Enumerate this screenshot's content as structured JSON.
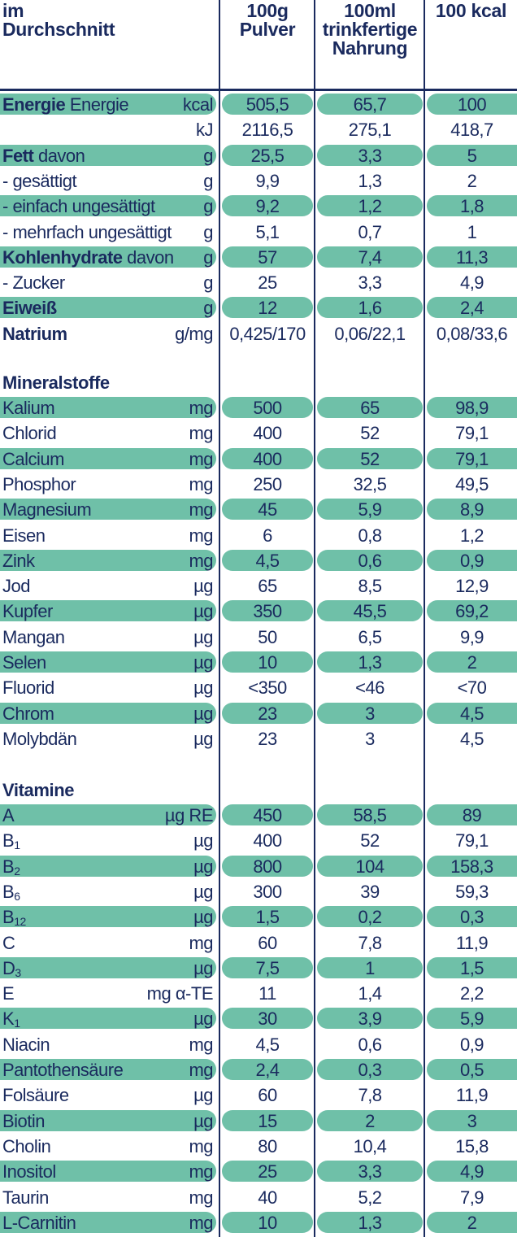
{
  "header": {
    "col0": [
      "im",
      "Durchschnitt"
    ],
    "col1": [
      "100g",
      "Pulver"
    ],
    "col2": [
      "100ml",
      "trinkfertige",
      "Nahrung"
    ],
    "col3": [
      "100 kcal"
    ]
  },
  "colors": {
    "band": "#6fc0a8",
    "text": "#1a2a5e",
    "rule": "#1a2a5e"
  },
  "sections": [
    {
      "title": "",
      "rows": [
        {
          "name": "Energie",
          "bold": "Energie",
          "unit": "kcal",
          "v": [
            "505,5",
            "65,7",
            "100"
          ],
          "shaded": true
        },
        {
          "name": "",
          "unit": "kJ",
          "v": [
            "2116,5",
            "275,1",
            "418,7"
          ],
          "shaded": false
        },
        {
          "name": "davon",
          "bold": "Fett",
          "unit": "g",
          "v": [
            "25,5",
            "3,3",
            "5"
          ],
          "shaded": true
        },
        {
          "name": "- gesättigt",
          "unit": "g",
          "v": [
            "9,9",
            "1,3",
            "2"
          ],
          "shaded": false
        },
        {
          "name": "- einfach ungesättigt",
          "unit": "g",
          "v": [
            "9,2",
            "1,2",
            "1,8"
          ],
          "shaded": true
        },
        {
          "name": "- mehrfach ungesättigt",
          "unit": "g",
          "v": [
            "5,1",
            "0,7",
            "1"
          ],
          "shaded": false
        },
        {
          "name": "davon",
          "bold": "Kohlenhydrate",
          "unit": "g",
          "v": [
            "57",
            "7,4",
            "11,3"
          ],
          "shaded": true
        },
        {
          "name": "- Zucker",
          "unit": "g",
          "v": [
            "25",
            "3,3",
            "4,9"
          ],
          "shaded": false
        },
        {
          "name": "",
          "bold": "Eiweiß",
          "unit": "g",
          "v": [
            "12",
            "1,6",
            "2,4"
          ],
          "shaded": true
        },
        {
          "name": "",
          "bold": "Natrium",
          "unit": "g/mg",
          "v": [
            "0,425/170",
            "0,06/22,1",
            "0,08/33,6"
          ],
          "shaded": false
        }
      ]
    },
    {
      "title": "Mineralstoffe",
      "rows": [
        {
          "name": "Kalium",
          "unit": "mg",
          "v": [
            "500",
            "65",
            "98,9"
          ],
          "shaded": true
        },
        {
          "name": "Chlorid",
          "unit": "mg",
          "v": [
            "400",
            "52",
            "79,1"
          ],
          "shaded": false
        },
        {
          "name": "Calcium",
          "unit": "mg",
          "v": [
            "400",
            "52",
            "79,1"
          ],
          "shaded": true
        },
        {
          "name": "Phosphor",
          "unit": "mg",
          "v": [
            "250",
            "32,5",
            "49,5"
          ],
          "shaded": false
        },
        {
          "name": "Magnesium",
          "unit": "mg",
          "v": [
            "45",
            "5,9",
            "8,9"
          ],
          "shaded": true
        },
        {
          "name": "Eisen",
          "unit": "mg",
          "v": [
            "6",
            "0,8",
            "1,2"
          ],
          "shaded": false
        },
        {
          "name": "Zink",
          "unit": "mg",
          "v": [
            "4,5",
            "0,6",
            "0,9"
          ],
          "shaded": true
        },
        {
          "name": "Jod",
          "unit": "µg",
          "v": [
            "65",
            "8,5",
            "12,9"
          ],
          "shaded": false
        },
        {
          "name": "Kupfer",
          "unit": "µg",
          "v": [
            "350",
            "45,5",
            "69,2"
          ],
          "shaded": true
        },
        {
          "name": "Mangan",
          "unit": "µg",
          "v": [
            "50",
            "6,5",
            "9,9"
          ],
          "shaded": false
        },
        {
          "name": "Selen",
          "unit": "µg",
          "v": [
            "10",
            "1,3",
            "2"
          ],
          "shaded": true
        },
        {
          "name": "Fluorid",
          "unit": "µg",
          "v": [
            "<350",
            "<46",
            "<70"
          ],
          "shaded": false
        },
        {
          "name": "Chrom",
          "unit": "µg",
          "v": [
            "23",
            "3",
            "4,5"
          ],
          "shaded": true
        },
        {
          "name": "Molybdän",
          "unit": "µg",
          "v": [
            "23",
            "3",
            "4,5"
          ],
          "shaded": false
        }
      ]
    },
    {
      "title": "Vitamine",
      "rows": [
        {
          "name": "A",
          "unit": "µg RE",
          "v": [
            "450",
            "58,5",
            "89"
          ],
          "shaded": true
        },
        {
          "name": "B",
          "sub": "1",
          "unit": "µg",
          "v": [
            "400",
            "52",
            "79,1"
          ],
          "shaded": false
        },
        {
          "name": "B",
          "sub": "2",
          "unit": "µg",
          "v": [
            "800",
            "104",
            "158,3"
          ],
          "shaded": true
        },
        {
          "name": "B",
          "sub": "6",
          "unit": "µg",
          "v": [
            "300",
            "39",
            "59,3"
          ],
          "shaded": false
        },
        {
          "name": "B",
          "sub": "12",
          "unit": "µg",
          "v": [
            "1,5",
            "0,2",
            "0,3"
          ],
          "shaded": true
        },
        {
          "name": "C",
          "unit": "mg",
          "v": [
            "60",
            "7,8",
            "11,9"
          ],
          "shaded": false
        },
        {
          "name": "D",
          "sub": "3",
          "unit": "µg",
          "v": [
            "7,5",
            "1",
            "1,5"
          ],
          "shaded": true
        },
        {
          "name": "E",
          "unit": "mg α-TE",
          "v": [
            "11",
            "1,4",
            "2,2"
          ],
          "shaded": false
        },
        {
          "name": "K",
          "sub": "1",
          "unit": "µg",
          "v": [
            "30",
            "3,9",
            "5,9"
          ],
          "shaded": true
        },
        {
          "name": "Niacin",
          "unit": "mg",
          "v": [
            "4,5",
            "0,6",
            "0,9"
          ],
          "shaded": false
        },
        {
          "name": "Pantothensäure",
          "unit": "mg",
          "v": [
            "2,4",
            "0,3",
            "0,5"
          ],
          "shaded": true
        },
        {
          "name": "Folsäure",
          "unit": "µg",
          "v": [
            "60",
            "7,8",
            "11,9"
          ],
          "shaded": false
        },
        {
          "name": "Biotin",
          "unit": "µg",
          "v": [
            "15",
            "2",
            "3"
          ],
          "shaded": true
        },
        {
          "name": "Cholin",
          "unit": "mg",
          "v": [
            "80",
            "10,4",
            "15,8"
          ],
          "shaded": false
        },
        {
          "name": "Inositol",
          "unit": "mg",
          "v": [
            "25",
            "3,3",
            "4,9"
          ],
          "shaded": true
        },
        {
          "name": "Taurin",
          "unit": "mg",
          "v": [
            "40",
            "5,2",
            "7,9"
          ],
          "shaded": false
        },
        {
          "name": "L-Carnitin",
          "unit": "mg",
          "v": [
            "10",
            "1,3",
            "2"
          ],
          "shaded": true
        }
      ]
    }
  ]
}
